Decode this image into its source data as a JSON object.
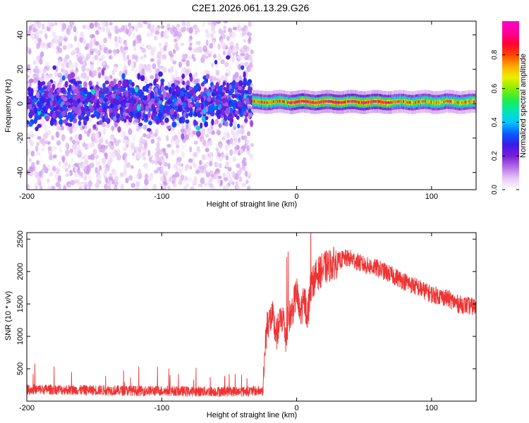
{
  "title": "C2E1.2026.061.13.29.G26",
  "chart_data": [
    {
      "type": "heatmap",
      "xlabel": "Height of straight line (km)",
      "ylabel": "Frequency (Hz)",
      "xlim": [
        -200,
        133
      ],
      "ylim": [
        -50,
        48
      ],
      "xticks": [
        -200,
        -100,
        0,
        100
      ],
      "yticks": [
        -40,
        -20,
        0,
        20,
        40
      ],
      "colorbar": {
        "label": "Normalized spectral amplitude",
        "range": [
          0,
          1
        ],
        "ticks": [
          "0.0",
          "0.2",
          "0.4",
          "0.6",
          "0.8"
        ],
        "colors": [
          "#ffffff",
          "#e6c8f5",
          "#b46ee6",
          "#7a1fd6",
          "#3a1ae8",
          "#0a5cff",
          "#00c8ff",
          "#00e6b4",
          "#22ee44",
          "#88ee00",
          "#eeee00",
          "#ffaa00",
          "#ff4400",
          "#ff0033",
          "#ff0099",
          "#ff00cc"
        ]
      },
      "regions": [
        {
          "x_range": [
            -200,
            -33
          ],
          "noise_band_hz": [
            -10,
            12
          ],
          "scatter_band_hz": [
            -50,
            48
          ],
          "peak_amplitude": 0.3
        },
        {
          "x_range": [
            -33,
            133
          ],
          "line_frequency_hz": 1,
          "line_width_hz": 3,
          "peak_amplitude": 0.8
        }
      ]
    },
    {
      "type": "line",
      "xlabel": "Height of straight line (km)",
      "ylabel": "SNR (10 * v/v)",
      "xlim": [
        -200,
        133
      ],
      "ylim": [
        0,
        2600
      ],
      "xticks": [
        -200,
        -100,
        0,
        100
      ],
      "yticks": [
        500,
        1000,
        1500,
        2000,
        2500
      ],
      "color": "#ee3333",
      "series": [
        {
          "x": [
            -200,
            -180,
            -160,
            -140,
            -120,
            -100,
            -80,
            -60,
            -40,
            -25,
            -23,
            -22,
            -20,
            -18,
            -15,
            -12,
            -10,
            -8,
            -6,
            -4,
            -2,
            0,
            2,
            4,
            6,
            8,
            10,
            12,
            15,
            20,
            25,
            30,
            35,
            40,
            45,
            50,
            60,
            70,
            80,
            90,
            100,
            110,
            120,
            133
          ],
          "y": [
            180,
            180,
            170,
            170,
            160,
            160,
            150,
            150,
            150,
            160,
            900,
            1200,
            1250,
            1300,
            1000,
            1250,
            1300,
            950,
            1300,
            1350,
            1500,
            1700,
            1350,
            1450,
            1550,
            1300,
            1700,
            1850,
            1950,
            2050,
            2100,
            2150,
            2200,
            2200,
            2150,
            2100,
            2050,
            1950,
            1850,
            1750,
            1650,
            1600,
            1500,
            1450
          ]
        }
      ]
    }
  ]
}
